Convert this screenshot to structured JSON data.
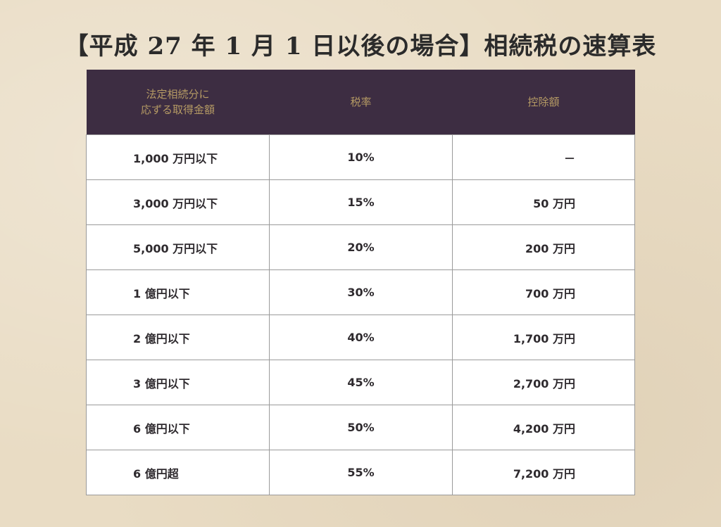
{
  "title": "【平成 27 年 1 月 1 日以後の場合】相続税の速算表",
  "table": {
    "headers": {
      "amount_line1": "法定相続分に",
      "amount_line2": "応ずる取得金額",
      "rate": "税率",
      "deduction": "控除額"
    },
    "rows": [
      {
        "amount": "1,000 万円以下",
        "rate": "10%",
        "deduction": "－"
      },
      {
        "amount": "3,000 万円以下",
        "rate": "15%",
        "deduction": "50 万円"
      },
      {
        "amount": "5,000 万円以下",
        "rate": "20%",
        "deduction": "200 万円"
      },
      {
        "amount": "1 億円以下",
        "rate": "30%",
        "deduction": "700 万円"
      },
      {
        "amount": "2 億円以下",
        "rate": "40%",
        "deduction": "1,700 万円"
      },
      {
        "amount": "3 億円以下",
        "rate": "45%",
        "deduction": "2,700 万円"
      },
      {
        "amount": "6 億円以下",
        "rate": "50%",
        "deduction": "4,200 万円"
      },
      {
        "amount": "6 億円超",
        "rate": "55%",
        "deduction": "7,200 万円"
      }
    ]
  },
  "colors": {
    "background": "#e9dcc4",
    "header_bg": "#3d2d42",
    "header_text": "#b59a64",
    "cell_bg": "#ffffff",
    "border": "#9a9a9a",
    "text": "#2e2a2e"
  }
}
